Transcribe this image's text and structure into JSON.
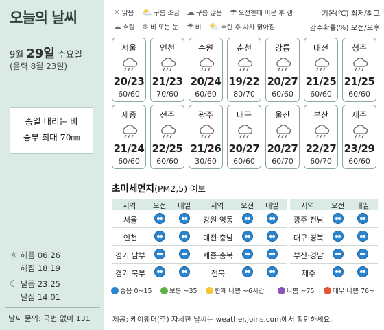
{
  "left": {
    "title": "오늘의 날씨",
    "date_month": "9월",
    "date_day": "29일",
    "date_weekday": "수요일",
    "lunar": "(음력 8월 23일)",
    "notice_line1": "종일 내리는 비",
    "notice_line2": "중부 최대 70㎜",
    "sunrise": "해뜸 06:26",
    "sunset": "해짐 18:19",
    "moonrise": "달뜸 23:25",
    "moonset": "달짐 14:01",
    "contact": "날씨 문의: 국번 없이 131"
  },
  "legend": {
    "items": [
      {
        "label": "맑음",
        "icon": "sun-icon"
      },
      {
        "label": "구름 조금",
        "icon": "partly-cloudy-icon"
      },
      {
        "label": "구름 많음",
        "icon": "mostly-cloudy-icon"
      },
      {
        "label": "오전한때 비온 후 갬",
        "icon": "rain-then-clear-icon"
      },
      {
        "label": "흐림",
        "icon": "cloudy-icon"
      },
      {
        "label": "비 또는 눈",
        "icon": "rain-or-snow-icon"
      },
      {
        "label": "비",
        "icon": "rain-icon"
      },
      {
        "label": "흐린 후 차차 맑아짐",
        "icon": "cloudy-then-clear-icon"
      }
    ],
    "temp_label": "기온(℃) 최저/최고",
    "rain_label": "강수확률(%) 오전/오후"
  },
  "cities": [
    {
      "name": "서울",
      "temp": "20/23",
      "rain": "60/60"
    },
    {
      "name": "인천",
      "temp": "21/23",
      "rain": "70/60"
    },
    {
      "name": "수원",
      "temp": "20/24",
      "rain": "60/60"
    },
    {
      "name": "춘천",
      "temp": "19/22",
      "rain": "80/70"
    },
    {
      "name": "강릉",
      "temp": "20/27",
      "rain": "60/60"
    },
    {
      "name": "대전",
      "temp": "21/25",
      "rain": "60/60"
    },
    {
      "name": "청주",
      "temp": "21/25",
      "rain": "60/60"
    },
    {
      "name": "세종",
      "temp": "21/24",
      "rain": "60/60"
    },
    {
      "name": "전주",
      "temp": "22/25",
      "rain": "60/60"
    },
    {
      "name": "광주",
      "temp": "21/26",
      "rain": "30/60"
    },
    {
      "name": "대구",
      "temp": "20/27",
      "rain": "60/60"
    },
    {
      "name": "울산",
      "temp": "20/27",
      "rain": "60/70"
    },
    {
      "name": "부산",
      "temp": "22/27",
      "rain": "60/70"
    },
    {
      "name": "제주",
      "temp": "23/29",
      "rain": "60/60"
    }
  ],
  "dust": {
    "title": "초미세먼지",
    "title_paren": "(PM2,5) 예보",
    "col_region": "지역",
    "col_am": "오전",
    "col_pm": "내일",
    "tables": [
      {
        "rows": [
          {
            "region": "서울",
            "am": "good",
            "pm": "good"
          },
          {
            "region": "인천",
            "am": "good",
            "pm": "good"
          },
          {
            "region": "경기 남부",
            "am": "good",
            "pm": "good"
          },
          {
            "region": "경기 북부",
            "am": "good",
            "pm": "good"
          }
        ]
      },
      {
        "rows": [
          {
            "region": "강원 영동",
            "am": "good",
            "pm": "good"
          },
          {
            "region": "대전·충남",
            "am": "good",
            "pm": "good"
          },
          {
            "region": "세종·충북",
            "am": "good",
            "pm": "good"
          },
          {
            "region": "전북",
            "am": "good",
            "pm": "good"
          }
        ]
      },
      {
        "rows": [
          {
            "region": "광주·전남",
            "am": "good",
            "pm": "good"
          },
          {
            "region": "대구·경북",
            "am": "good",
            "pm": "good"
          },
          {
            "region": "부산·경남",
            "am": "good",
            "pm": "good"
          },
          {
            "region": "제주",
            "am": "good",
            "pm": "good"
          }
        ]
      }
    ],
    "legend": [
      {
        "label": "좋음 0~15",
        "color": "#2a86d0"
      },
      {
        "label": "보통 ~35",
        "color": "#5bb34a"
      },
      {
        "label": "한때 나쁨 ~6시간",
        "color": "#f3c93a"
      },
      {
        "label": "나쁨 ~75",
        "color": "#8a55b8"
      },
      {
        "label": "매우 나쁨 76~",
        "color": "#e0572f"
      }
    ]
  },
  "footer": "제공: 케이웨더(주) 자세한 날씨는 weather.joins.com에서 확인하세요."
}
